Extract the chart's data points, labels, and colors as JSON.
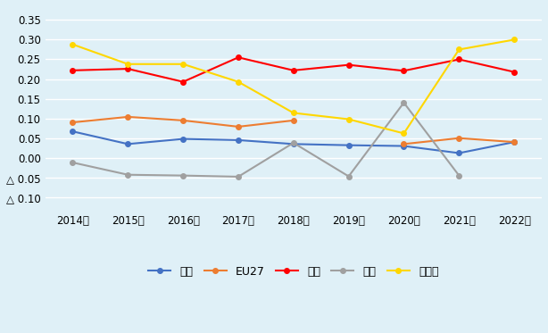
{
  "years": [
    "2014年",
    "2015年",
    "2016年",
    "2017年",
    "2018年",
    "2019年",
    "2020年",
    "2021年",
    "2022年"
  ],
  "series_order": [
    "米国",
    "EU27",
    "日本",
    "英国",
    "ドイツ"
  ],
  "series_data": {
    "米国": [
      0.067,
      0.035,
      0.048,
      0.045,
      0.035,
      0.032,
      0.03,
      0.012,
      0.04
    ],
    "EU27": [
      0.09,
      0.104,
      0.095,
      0.079,
      0.095,
      null,
      0.035,
      0.05,
      0.04
    ],
    "日本": [
      0.222,
      0.226,
      0.193,
      0.255,
      0.222,
      0.236,
      0.221,
      0.25,
      0.218
    ],
    "英国": [
      -0.012,
      -0.043,
      -0.045,
      -0.048,
      0.038,
      -0.047,
      0.14,
      -0.045,
      null
    ],
    "ドイツ": [
      0.288,
      0.238,
      0.238,
      0.193,
      0.114,
      0.098,
      0.062,
      0.275,
      0.3
    ]
  },
  "colors": {
    "米国": "#4472C4",
    "EU27": "#ED7D31",
    "日本": "#FF0000",
    "英国": "#A0A0A0",
    "ドイツ": "#FFD700"
  },
  "ytick_vals": [
    -0.1,
    -0.05,
    0.0,
    0.05,
    0.1,
    0.15,
    0.2,
    0.25,
    0.3,
    0.35
  ],
  "ytick_labels": [
    "△ 0.10",
    "△ 0.05",
    "0.00",
    "0.05",
    "0.10",
    "0.15",
    "0.20",
    "0.25",
    "0.30",
    "0.35"
  ],
  "ylim": [
    -0.135,
    0.385
  ],
  "background_color": "#DFF0F7",
  "grid_color": "#FFFFFF",
  "marker_size": 4,
  "line_width": 1.5,
  "tick_fontsize": 8.5,
  "legend_fontsize": 9
}
